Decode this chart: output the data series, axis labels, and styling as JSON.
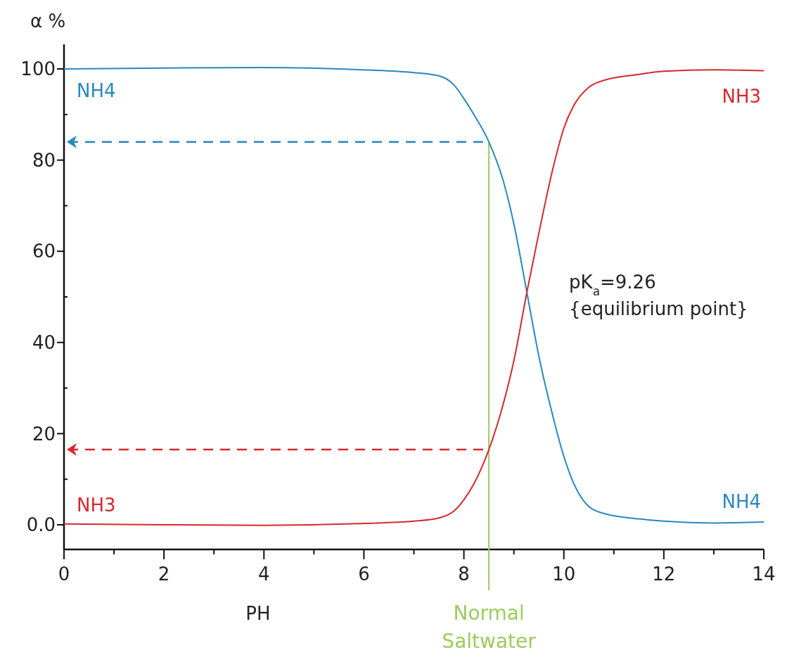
{
  "chart_data": {
    "type": "line",
    "xlabel": "PH",
    "ylabel": "α %",
    "x": [
      0,
      2,
      4,
      6,
      7,
      7.5,
      7.8,
      8.0,
      8.2,
      8.5,
      8.8,
      9.0,
      9.26,
      9.5,
      9.8,
      10.0,
      10.2,
      10.5,
      10.8,
      11.5,
      12,
      13,
      14
    ],
    "series": [
      {
        "name": "NH4",
        "color": "#2a87c0",
        "values": [
          100,
          100.2,
          100.3,
          99.8,
          99.2,
          98.5,
          96.5,
          93.5,
          90,
          84,
          75,
          66,
          51,
          37,
          23,
          15,
          9,
          4,
          2.5,
          1.3,
          0.8,
          0.4,
          0.6
        ]
      },
      {
        "name": "NH3",
        "color": "#d42a2f",
        "values": [
          0.2,
          0,
          -0.1,
          0.3,
          0.8,
          1.5,
          3,
          5.5,
          9,
          16.5,
          27,
          36,
          51,
          64,
          79,
          87,
          92,
          96,
          97.5,
          98.8,
          99.5,
          99.8,
          99.6
        ]
      }
    ],
    "xlim": [
      0,
      14
    ],
    "ylim": [
      -5.4,
      105.4
    ],
    "xticks": [
      0,
      {
        "value": 1,
        "label": null
      },
      2,
      {
        "value": 3,
        "label": null
      },
      4,
      {
        "value": 5,
        "label": null
      },
      6,
      {
        "value": 7,
        "label": null
      },
      8,
      {
        "value": 9,
        "label": null
      },
      10,
      {
        "value": 11,
        "label": null
      },
      12,
      {
        "value": 13,
        "label": null
      },
      14
    ],
    "yticks": [
      {
        "value": 0,
        "label": "0.0"
      },
      {
        "value": 10,
        "label": null
      },
      20,
      {
        "value": 30,
        "label": null
      },
      40,
      {
        "value": 50,
        "label": null
      },
      60,
      {
        "value": 70,
        "label": null
      },
      80,
      {
        "value": 90,
        "label": null
      },
      100
    ],
    "ref_lines": [
      {
        "axis": "x",
        "value": 8.5,
        "label": "Normal\nSaltwater",
        "color": "#9ccc5c"
      },
      {
        "axis": "y",
        "value": 84,
        "color": "#2a87c0",
        "line_style": "dashed"
      },
      {
        "axis": "y",
        "value": 16.5,
        "color": "#d42a2f",
        "line_style": "dashed"
      }
    ],
    "annotations": [
      {
        "text": "pK$_{a}$=9.26\n{equilibrium point}",
        "x": 9.26,
        "y": 51
      }
    ],
    "grid": false,
    "marker": "none",
    "line_style": "solid"
  }
}
